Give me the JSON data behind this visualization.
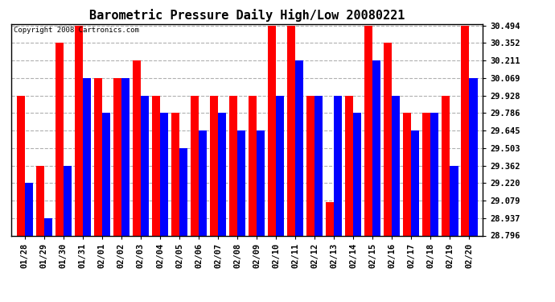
{
  "title": "Barometric Pressure Daily High/Low 20080221",
  "copyright": "Copyright 2008 Cartronics.com",
  "dates": [
    "01/28",
    "01/29",
    "01/30",
    "01/31",
    "02/01",
    "02/02",
    "02/03",
    "02/04",
    "02/05",
    "02/06",
    "02/07",
    "02/08",
    "02/09",
    "02/10",
    "02/11",
    "02/12",
    "02/13",
    "02/14",
    "02/15",
    "02/16",
    "02/17",
    "02/18",
    "02/19",
    "02/20"
  ],
  "highs": [
    29.928,
    29.362,
    30.352,
    30.494,
    30.069,
    30.069,
    30.211,
    29.928,
    29.786,
    29.928,
    29.928,
    29.928,
    29.928,
    30.494,
    30.494,
    29.928,
    29.069,
    29.928,
    30.494,
    30.352,
    29.786,
    29.786,
    29.928,
    30.494
  ],
  "lows": [
    29.22,
    28.937,
    29.362,
    30.069,
    29.786,
    30.069,
    29.928,
    29.786,
    29.503,
    29.645,
    29.786,
    29.645,
    29.645,
    29.928,
    30.211,
    29.928,
    29.928,
    29.786,
    30.211,
    29.928,
    29.645,
    29.786,
    29.362,
    30.069
  ],
  "ylim_min": 28.796,
  "ylim_max": 30.494,
  "yticks": [
    28.796,
    28.937,
    29.079,
    29.22,
    29.362,
    29.503,
    29.645,
    29.786,
    29.928,
    30.069,
    30.211,
    30.352,
    30.494
  ],
  "high_color": "#ff0000",
  "low_color": "#0000ff",
  "bg_color": "#ffffff",
  "grid_color": "#b0b0b0",
  "title_fontsize": 11,
  "tick_fontsize": 7.5,
  "copyright_fontsize": 6.5
}
